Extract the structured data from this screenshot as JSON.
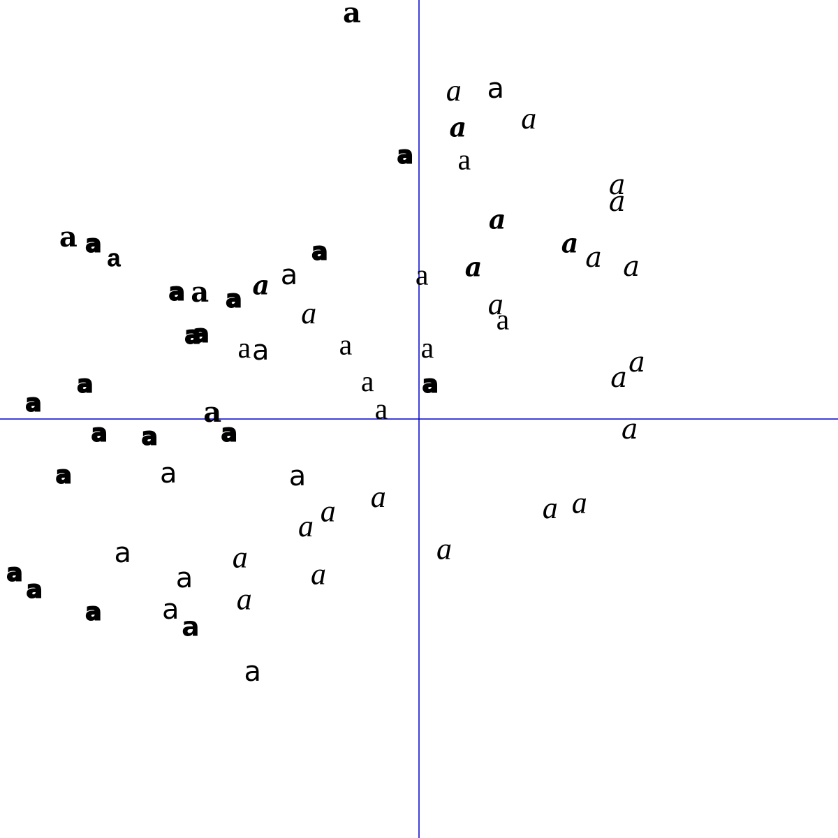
{
  "chart_data": {
    "type": "scatter",
    "title": "",
    "xlabel": "",
    "ylabel": "",
    "xlim": [
      -1,
      1
    ],
    "ylim": [
      -1,
      1
    ],
    "grid": false,
    "axis_color": "#0000cc",
    "marker_color": "#000000",
    "points": [
      {
        "label": "a",
        "x": -0.16,
        "y": 0.963,
        "style": "serif-bold"
      },
      {
        "label": "a",
        "x": 0.083,
        "y": 0.777,
        "style": "italic"
      },
      {
        "label": "a",
        "x": 0.183,
        "y": 0.785,
        "style": "sans"
      },
      {
        "label": "a",
        "x": 0.093,
        "y": 0.69,
        "style": "italic-bold"
      },
      {
        "label": "a",
        "x": 0.262,
        "y": 0.71,
        "style": "italic"
      },
      {
        "label": "a",
        "x": -0.033,
        "y": 0.627,
        "style": "block"
      },
      {
        "label": "a",
        "x": 0.108,
        "y": 0.612,
        "style": "serif"
      },
      {
        "label": "a",
        "x": 0.473,
        "y": 0.553,
        "style": "light-italic"
      },
      {
        "label": "a",
        "x": 0.473,
        "y": 0.513,
        "style": "light-italic"
      },
      {
        "label": "a",
        "x": 0.187,
        "y": 0.47,
        "style": "italic-bold"
      },
      {
        "label": "a",
        "x": -0.837,
        "y": 0.428,
        "style": "serif-bold"
      },
      {
        "label": "a",
        "x": -0.777,
        "y": 0.415,
        "style": "block"
      },
      {
        "label": "a",
        "x": -0.728,
        "y": 0.38,
        "style": "mono-bold"
      },
      {
        "label": "a",
        "x": -0.237,
        "y": 0.397,
        "style": "block"
      },
      {
        "label": "a",
        "x": 0.36,
        "y": 0.413,
        "style": "italic-bold"
      },
      {
        "label": "a",
        "x": 0.417,
        "y": 0.38,
        "style": "light-italic"
      },
      {
        "label": "a",
        "x": 0.507,
        "y": 0.358,
        "style": "light-italic"
      },
      {
        "label": "a",
        "x": -0.31,
        "y": 0.34,
        "style": "sans"
      },
      {
        "label": "a",
        "x": 0.007,
        "y": 0.337,
        "style": "serif"
      },
      {
        "label": "a",
        "x": 0.13,
        "y": 0.357,
        "style": "italic-bold"
      },
      {
        "label": "a",
        "x": -0.578,
        "y": 0.3,
        "style": "block"
      },
      {
        "label": "a",
        "x": -0.523,
        "y": 0.297,
        "style": "serif-bold"
      },
      {
        "label": "a",
        "x": -0.442,
        "y": 0.283,
        "style": "block"
      },
      {
        "label": "a",
        "x": -0.377,
        "y": 0.313,
        "style": "italic-bold"
      },
      {
        "label": "a",
        "x": -0.263,
        "y": 0.245,
        "style": "italic"
      },
      {
        "label": "a",
        "x": 0.183,
        "y": 0.267,
        "style": "italic"
      },
      {
        "label": "a",
        "x": 0.2,
        "y": 0.23,
        "style": "serif"
      },
      {
        "label": "a",
        "x": -0.54,
        "y": 0.197,
        "style": "block"
      },
      {
        "label": "a",
        "x": -0.52,
        "y": 0.2,
        "style": "block"
      },
      {
        "label": "a",
        "x": -0.417,
        "y": 0.163,
        "style": "serif"
      },
      {
        "label": "a",
        "x": -0.378,
        "y": 0.16,
        "style": "sans"
      },
      {
        "label": "a",
        "x": -0.175,
        "y": 0.17,
        "style": "serif"
      },
      {
        "label": "a",
        "x": 0.02,
        "y": 0.163,
        "style": "serif"
      },
      {
        "label": "a",
        "x": 0.477,
        "y": 0.093,
        "style": "light-italic"
      },
      {
        "label": "a",
        "x": 0.52,
        "y": 0.13,
        "style": "light-italic"
      },
      {
        "label": "a",
        "x": -0.797,
        "y": 0.08,
        "style": "block"
      },
      {
        "label": "a",
        "x": -0.92,
        "y": 0.035,
        "style": "block"
      },
      {
        "label": "a",
        "x": -0.123,
        "y": 0.083,
        "style": "serif"
      },
      {
        "label": "a",
        "x": 0.027,
        "y": 0.08,
        "style": "block"
      },
      {
        "label": "a",
        "x": -0.09,
        "y": 0.017,
        "style": "serif"
      },
      {
        "label": "a",
        "x": -0.493,
        "y": 0.01,
        "style": "serif-bold"
      },
      {
        "label": "a",
        "x": -0.763,
        "y": -0.037,
        "style": "block"
      },
      {
        "label": "a",
        "x": -0.643,
        "y": -0.045,
        "style": "block"
      },
      {
        "label": "a",
        "x": -0.453,
        "y": -0.037,
        "style": "block"
      },
      {
        "label": "a",
        "x": 0.503,
        "y": -0.03,
        "style": "light-italic"
      },
      {
        "label": "a",
        "x": -0.848,
        "y": -0.137,
        "style": "block"
      },
      {
        "label": "a",
        "x": -0.598,
        "y": -0.133,
        "style": "sans"
      },
      {
        "label": "a",
        "x": -0.29,
        "y": -0.14,
        "style": "sans"
      },
      {
        "label": "a",
        "x": -0.097,
        "y": -0.193,
        "style": "italic"
      },
      {
        "label": "a",
        "x": -0.217,
        "y": -0.227,
        "style": "italic"
      },
      {
        "label": "a",
        "x": -0.27,
        "y": -0.263,
        "style": "italic"
      },
      {
        "label": "a",
        "x": 0.313,
        "y": -0.22,
        "style": "italic"
      },
      {
        "label": "a",
        "x": 0.383,
        "y": -0.207,
        "style": "italic"
      },
      {
        "label": "a",
        "x": 0.06,
        "y": -0.317,
        "style": "italic"
      },
      {
        "label": "a",
        "x": -0.707,
        "y": -0.323,
        "style": "sans"
      },
      {
        "label": "a",
        "x": -0.427,
        "y": -0.337,
        "style": "italic"
      },
      {
        "label": "a",
        "x": -0.24,
        "y": -0.377,
        "style": "italic"
      },
      {
        "label": "a",
        "x": -0.965,
        "y": -0.37,
        "style": "block"
      },
      {
        "label": "a",
        "x": -0.918,
        "y": -0.41,
        "style": "block"
      },
      {
        "label": "a",
        "x": -0.56,
        "y": -0.383,
        "style": "sans"
      },
      {
        "label": "a",
        "x": -0.417,
        "y": -0.437,
        "style": "italic"
      },
      {
        "label": "a",
        "x": -0.777,
        "y": -0.463,
        "style": "block"
      },
      {
        "label": "a",
        "x": -0.593,
        "y": -0.458,
        "style": "sans"
      },
      {
        "label": "a",
        "x": -0.545,
        "y": -0.5,
        "style": "sans-bold"
      },
      {
        "label": "a",
        "x": -0.397,
        "y": -0.607,
        "style": "sans"
      }
    ]
  }
}
